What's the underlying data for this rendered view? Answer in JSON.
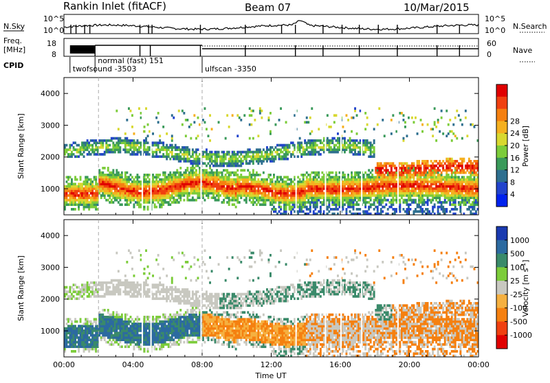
{
  "header": {
    "station": "Rankin Inlet (fitACF)",
    "beam": "Beam 07",
    "date": "10/Mar/2015"
  },
  "status_panels": {
    "nsky_label": "N.Sky",
    "nsearch_label": "N.Search",
    "freq_label_line1": "Freq.",
    "freq_label_line2": "[MHz]",
    "nave_label": "Nave",
    "cpid_label": "CPID",
    "left_ticks_counts": [
      "10^5",
      "10^0"
    ],
    "right_ticks_counts": [
      "10^5",
      "10^0"
    ],
    "left_ticks_freq": [
      "18",
      "8"
    ],
    "right_ticks_freq": [
      "60",
      "0"
    ],
    "cpid_entries": [
      {
        "label": "twofsound -3503",
        "start_hour": 0.35
      },
      {
        "label": "normal (fast) 151",
        "start_hour": 1.8
      },
      {
        "label": "ulfscan -3350",
        "start_hour": 8.0
      }
    ]
  },
  "chart_data": [
    {
      "type": "heatmap",
      "title": "",
      "xlabel": "",
      "ylabel": "Slant Range [km]",
      "xlim": [
        0,
        24
      ],
      "ylim": [
        180,
        4500
      ],
      "yticks": [
        1000,
        2000,
        3000,
        4000
      ],
      "colorbar": {
        "label": "Power [dB]",
        "range": [
          0,
          32
        ],
        "ticks": [
          "4",
          "8",
          "12",
          "16",
          "20",
          "24",
          "28"
        ],
        "colors": [
          "#0022ee",
          "#2244cc",
          "#2e6f8f",
          "#3a9a5a",
          "#7ccc3a",
          "#d8d830",
          "#f5b020",
          "#f58010",
          "#f04010",
          "#e00000"
        ]
      }
    },
    {
      "type": "heatmap",
      "title": "",
      "xlabel": "Time UT",
      "ylabel": "Slant Range [km]",
      "xlim": [
        0,
        24
      ],
      "ylim": [
        180,
        4500
      ],
      "yticks": [
        1000,
        2000,
        3000,
        4000
      ],
      "xticks": [
        "00:00",
        "04:00",
        "08:00",
        "12:00",
        "16:00",
        "20:00",
        "00:00"
      ],
      "colorbar": {
        "label": "Velocity [m s^-1]",
        "ticks": [
          "1000",
          "500",
          "100",
          "25",
          "-25",
          "-100",
          "-500",
          "-1000"
        ],
        "colors": [
          "#1a3ab0",
          "#2c6aa0",
          "#3a8a6a",
          "#7ccc3a",
          "#c8c8c0",
          "#f5b040",
          "#f58010",
          "#f04010",
          "#e00000"
        ]
      }
    }
  ]
}
